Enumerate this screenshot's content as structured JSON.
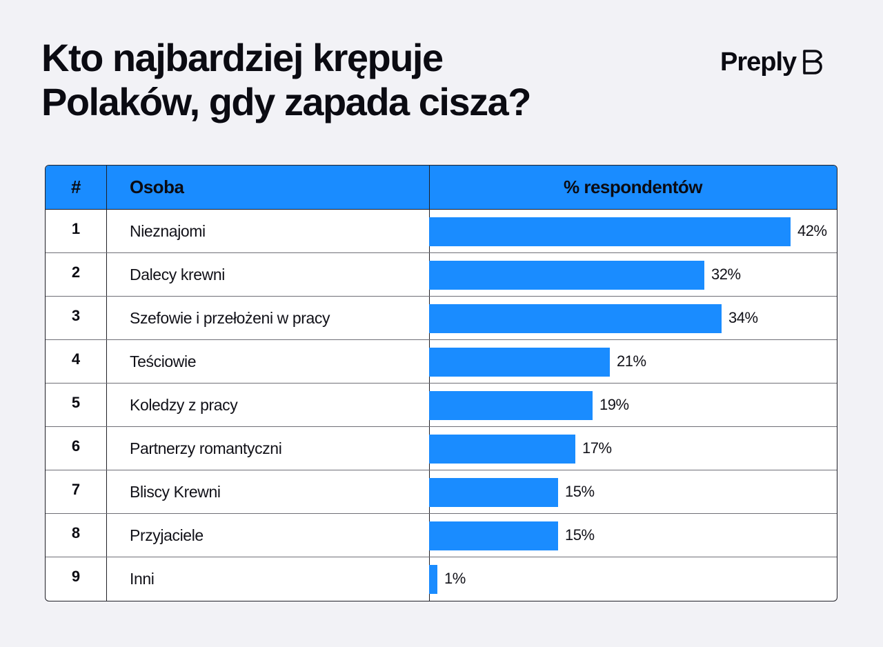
{
  "title_lines": [
    "Kto najbardziej krępuje",
    "Polaków, gdy zapada cisza?"
  ],
  "brand": {
    "name": "Preply"
  },
  "colors": {
    "accent": "#1a8cff",
    "background": "#f2f2f6",
    "text": "#0b0b12"
  },
  "table": {
    "headers": {
      "num": "#",
      "name": "Osoba",
      "pct": "% respondentów"
    }
  },
  "chart_data": {
    "type": "bar",
    "orientation": "horizontal",
    "title": "Kto najbardziej krępuje Polaków, gdy zapada cisza?",
    "xlabel": "% respondentów",
    "ylabel": "Osoba",
    "xlim": [
      0,
      42
    ],
    "grid": false,
    "ranks": [
      "1",
      "2",
      "3",
      "4",
      "5",
      "6",
      "7",
      "8",
      "9"
    ],
    "categories": [
      "Nieznajomi",
      "Dalecy krewni",
      "Szefowie i przełożeni w pracy",
      "Teściowie",
      "Koledzy z pracy",
      "Partnerzy romantyczni",
      "Bliscy Krewni",
      "Przyjaciele",
      "Inni"
    ],
    "values": [
      42,
      32,
      34,
      21,
      19,
      17,
      15,
      15,
      1
    ],
    "value_labels": [
      "42%",
      "32%",
      "34%",
      "21%",
      "19%",
      "17%",
      "15%",
      "15%",
      "1%"
    ]
  }
}
